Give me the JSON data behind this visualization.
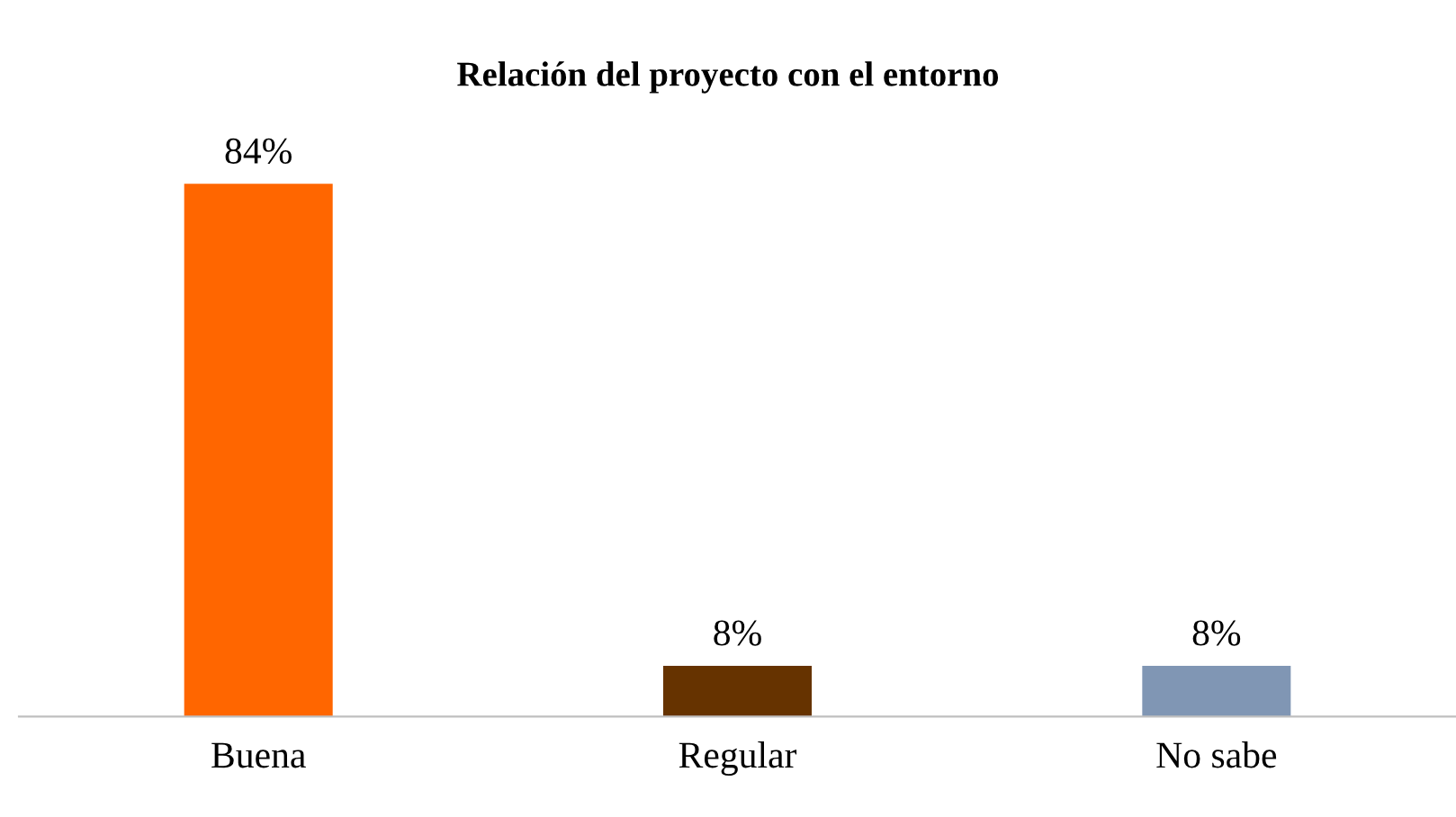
{
  "chart_data": {
    "type": "bar",
    "title": "Relación del proyecto con el entorno",
    "categories": [
      "Buena",
      "Regular",
      "No sabe"
    ],
    "values": [
      84,
      8,
      8
    ],
    "colors": [
      "#ff6600",
      "#663300",
      "#8096b4"
    ],
    "value_labels": [
      "84%",
      "8%",
      "8%"
    ],
    "grid": false,
    "legend": false
  }
}
